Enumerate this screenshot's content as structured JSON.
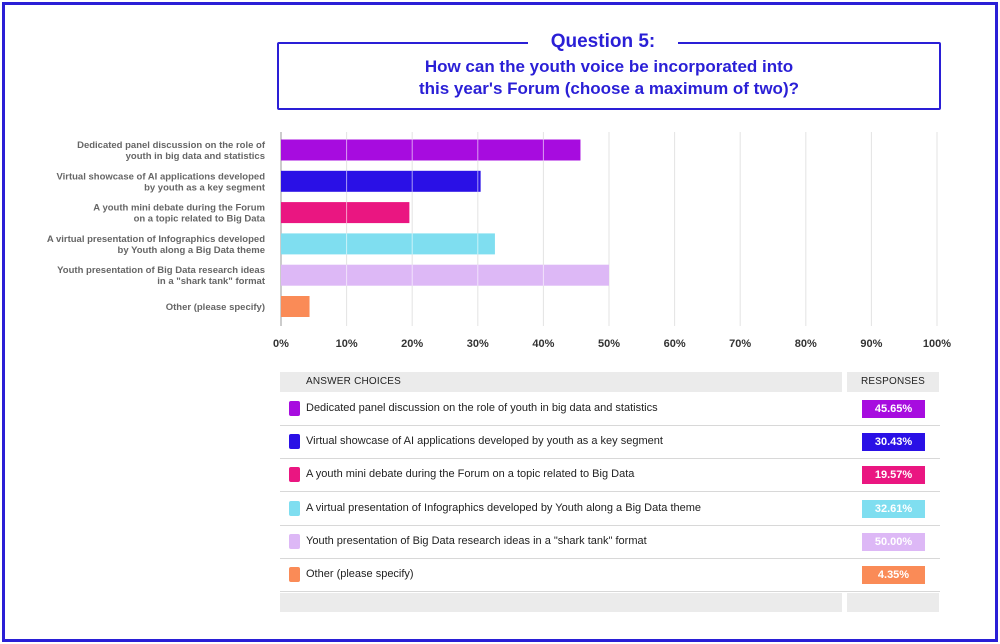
{
  "question": {
    "number": "Question 5:",
    "line1": "How can the youth voice be incorporated into",
    "line2": "this year's Forum (choose a maximum of two)?"
  },
  "chart_data": {
    "type": "bar",
    "orientation": "horizontal",
    "categories": [
      [
        "Dedicated panel discussion on the role of",
        "youth in big data and statistics"
      ],
      [
        "Virtual showcase of AI applications developed",
        "by youth as a key segment"
      ],
      [
        "A youth mini debate during the Forum",
        "on a topic related to Big Data"
      ],
      [
        "A virtual presentation of Infographics developed",
        "by Youth along a Big Data theme"
      ],
      [
        "Youth presentation of Big Data research ideas",
        "in a \"shark tank\" format"
      ],
      [
        "Other (please specify)"
      ]
    ],
    "values": [
      45.65,
      30.43,
      19.57,
      32.61,
      50.0,
      4.35
    ],
    "colors": [
      "#a70cdf",
      "#2a10e6",
      "#ea1681",
      "#7fdef0",
      "#ddb8f6",
      "#fa8b57"
    ],
    "xlim": [
      0,
      100
    ],
    "xticks": [
      "0%",
      "10%",
      "20%",
      "30%",
      "40%",
      "50%",
      "60%",
      "70%",
      "80%",
      "90%",
      "100%"
    ],
    "grid": true
  },
  "table": {
    "header_answers": "ANSWER CHOICES",
    "header_responses": "RESPONSES",
    "rows": [
      {
        "answer": "Dedicated panel discussion on the role of youth in big data and statistics",
        "pct": "45.65%",
        "color": "#a70cdf"
      },
      {
        "answer": "Virtual showcase of AI applications developed by youth as a key segment",
        "pct": "30.43%",
        "color": "#2a10e6"
      },
      {
        "answer": "A youth mini debate during the Forum on a topic related to Big Data",
        "pct": "19.57%",
        "color": "#ea1681"
      },
      {
        "answer": "A virtual presentation of Infographics developed by Youth along a Big Data theme",
        "pct": "32.61%",
        "color": "#7fdef0"
      },
      {
        "answer": "Youth presentation of Big Data research ideas in a \"shark tank\" format",
        "pct": "50.00%",
        "color": "#ddb8f6"
      },
      {
        "answer": "Other (please specify)",
        "pct": "4.35%",
        "color": "#fa8b57"
      }
    ]
  }
}
